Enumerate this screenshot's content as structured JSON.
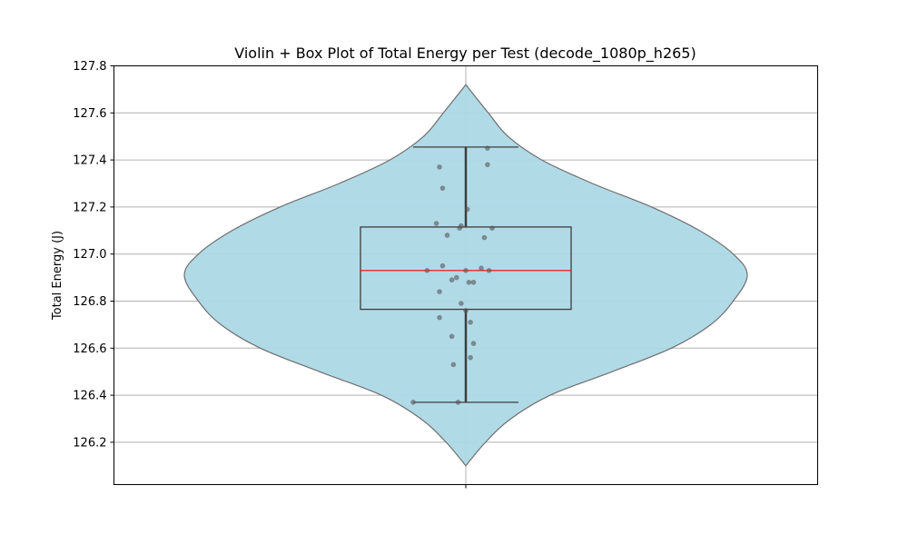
{
  "chart_data": {
    "type": "violin",
    "title": "Violin + Box Plot of Total Energy per Test (decode_1080p_h265)",
    "xlabel": "",
    "ylabel": "Total Energy (J)",
    "ylim": [
      126.02,
      127.8
    ],
    "yticks": [
      126.2,
      126.4,
      126.6,
      126.8,
      127.0,
      127.2,
      127.4,
      127.6,
      127.8
    ],
    "ytick_labels": [
      "126.2",
      "126.4",
      "126.6",
      "126.8",
      "127.0",
      "127.2",
      "127.4",
      "127.6",
      "127.8"
    ],
    "grid": true,
    "box": {
      "whisker_low": 126.37,
      "q1": 126.765,
      "median": 126.93,
      "q3": 127.115,
      "whisker_high": 127.455
    },
    "violin": {
      "min": 126.1,
      "max": 127.72,
      "profile": [
        [
          126.1,
          0.0
        ],
        [
          126.2,
          0.07
        ],
        [
          126.3,
          0.16
        ],
        [
          126.4,
          0.3
        ],
        [
          126.5,
          0.52
        ],
        [
          126.6,
          0.73
        ],
        [
          126.7,
          0.87
        ],
        [
          126.8,
          0.95
        ],
        [
          126.91,
          1.0
        ],
        [
          127.0,
          0.95
        ],
        [
          127.1,
          0.83
        ],
        [
          127.2,
          0.66
        ],
        [
          127.3,
          0.45
        ],
        [
          127.4,
          0.27
        ],
        [
          127.5,
          0.15
        ],
        [
          127.6,
          0.08
        ],
        [
          127.72,
          0.0
        ]
      ]
    },
    "points": [
      {
        "x": -0.34,
        "y": 126.37
      },
      {
        "x": -0.17,
        "y": 127.37
      },
      {
        "x": -0.15,
        "y": 127.28
      },
      {
        "x": -0.19,
        "y": 127.13
      },
      {
        "x": -0.12,
        "y": 127.08
      },
      {
        "x": -0.04,
        "y": 127.11
      },
      {
        "x": -0.03,
        "y": 127.12
      },
      {
        "x": 0.01,
        "y": 127.19
      },
      {
        "x": 0.12,
        "y": 127.07
      },
      {
        "x": 0.17,
        "y": 127.11
      },
      {
        "x": 0.14,
        "y": 127.38
      },
      {
        "x": 0.14,
        "y": 127.45
      },
      {
        "x": -0.25,
        "y": 126.93
      },
      {
        "x": -0.15,
        "y": 126.95
      },
      {
        "x": -0.06,
        "y": 126.9
      },
      {
        "x": 0.0,
        "y": 126.93
      },
      {
        "x": 0.05,
        "y": 126.88
      },
      {
        "x": 0.1,
        "y": 126.94
      },
      {
        "x": 0.15,
        "y": 126.93
      },
      {
        "x": -0.09,
        "y": 126.89
      },
      {
        "x": 0.02,
        "y": 126.88
      },
      {
        "x": -0.17,
        "y": 126.84
      },
      {
        "x": -0.03,
        "y": 126.79
      },
      {
        "x": 0.0,
        "y": 126.76
      },
      {
        "x": -0.17,
        "y": 126.73
      },
      {
        "x": 0.03,
        "y": 126.71
      },
      {
        "x": -0.09,
        "y": 126.65
      },
      {
        "x": 0.05,
        "y": 126.62
      },
      {
        "x": -0.08,
        "y": 126.53
      },
      {
        "x": 0.03,
        "y": 126.56
      },
      {
        "x": -0.05,
        "y": 126.37
      }
    ],
    "colors": {
      "violin_fill": "#add8e6",
      "violin_edge": "#6e6e6e",
      "box_edge": "#3d3d3d",
      "median": "#ff0000",
      "points": "#555555",
      "grid": "#b0b0b0"
    }
  }
}
